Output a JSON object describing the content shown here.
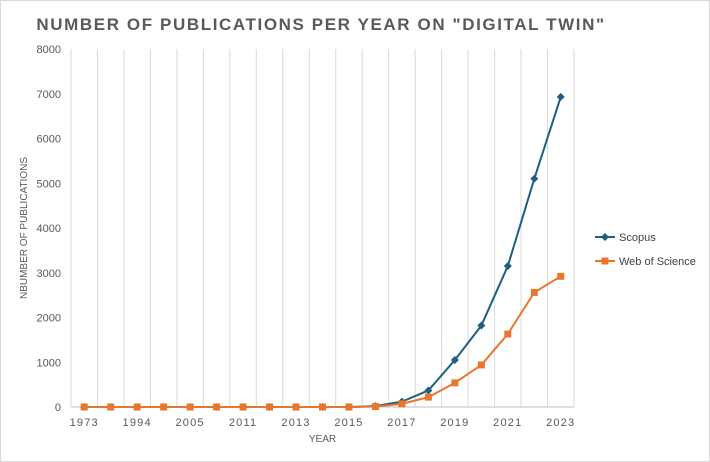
{
  "chart_data": {
    "type": "line",
    "title": "NUMBER OF PUBLICATIONS PER YEAR ON \"DIGITAL TWIN\"",
    "xlabel": "YEAR",
    "ylabel": "NBUMBER OF PUBLICATIONS",
    "ylim": [
      0,
      8000
    ],
    "yticks": [
      0,
      1000,
      2000,
      3000,
      4000,
      5000,
      6000,
      7000,
      8000
    ],
    "categories": [
      "1973",
      "",
      "1994",
      "",
      "2005",
      "",
      "2011",
      "",
      "2013",
      "",
      "2015",
      "",
      "2017",
      "",
      "2019",
      "",
      "2021",
      "",
      "2023"
    ],
    "grid": "vertical",
    "legend_position": "right",
    "series": [
      {
        "name": "Scopus",
        "color": "#1f5f7f",
        "marker": "diamond",
        "values": [
          0,
          0,
          0,
          0,
          0,
          0,
          0,
          0,
          0,
          0,
          0,
          20,
          120,
          370,
          1050,
          1820,
          3150,
          5100,
          6930
        ]
      },
      {
        "name": "Web of Science",
        "color": "#e8772e",
        "marker": "square",
        "values": [
          0,
          0,
          0,
          0,
          0,
          0,
          0,
          0,
          0,
          0,
          0,
          10,
          70,
          220,
          540,
          940,
          1630,
          2560,
          2920
        ]
      }
    ]
  }
}
